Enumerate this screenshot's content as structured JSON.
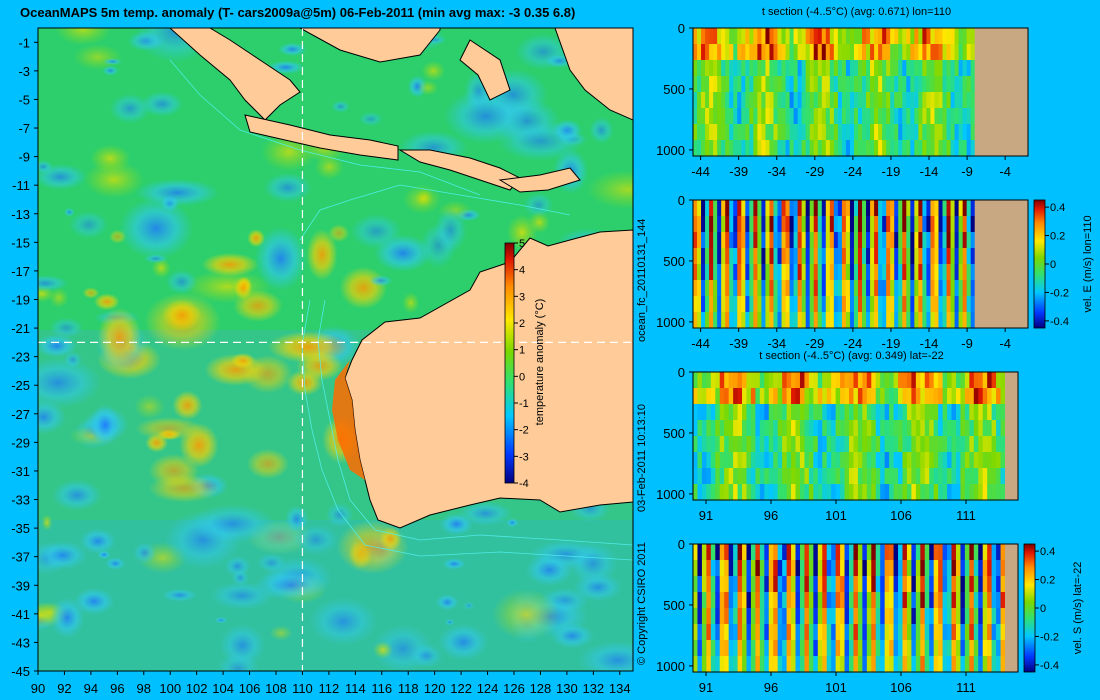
{
  "colors": {
    "background": "#00c0ff",
    "land": "#ffcc99",
    "section_land": "#c8a882"
  },
  "chart_data": [
    {
      "type": "heatmap",
      "title": "OceanMAPS 5m temp. anomaly (T- cars2009a@5m) 06-Feb-2011 (min avg max: -3 0.35 6.8)",
      "stats": {
        "min": -3,
        "avg": 0.35,
        "max": 6.8
      },
      "x_ticks": [
        90,
        92,
        94,
        96,
        98,
        100,
        102,
        104,
        106,
        108,
        110,
        112,
        114,
        116,
        118,
        120,
        122,
        124,
        126,
        128,
        130,
        132,
        134
      ],
      "y_ticks": [
        -1,
        -3,
        -5,
        -7,
        -9,
        -11,
        -13,
        -15,
        -17,
        -19,
        -21,
        -23,
        -25,
        -27,
        -29,
        -31,
        -33,
        -35,
        -37,
        -39,
        -41,
        -43,
        -45
      ],
      "xlim": [
        90,
        135
      ],
      "ylim": [
        -45,
        0
      ],
      "section_lon": 110,
      "section_lat": -22,
      "colorbar": {
        "label": "temperature anomaly (°C)",
        "ticks": [
          5,
          4,
          3,
          2,
          1,
          0,
          -1,
          -2,
          -3,
          -4
        ],
        "range": [
          -4,
          5
        ]
      },
      "side_text": [
        "© Copyright CSIRO 2011",
        "03-Feb-2011 10:13:10",
        "ocean_fc_20110131_144"
      ]
    },
    {
      "type": "heatmap",
      "title": "t section (-4..5°C) (avg: 0.671) lon=110",
      "avg": 0.671,
      "x_ticks": [
        -44,
        -39,
        -34,
        -29,
        -24,
        -19,
        -14,
        -9,
        -4
      ],
      "xlim": [
        -45,
        -1
      ],
      "y_ticks": [
        0,
        500,
        1000
      ],
      "ylim": [
        0,
        1050
      ],
      "land_from": -8
    },
    {
      "type": "heatmap",
      "title": "",
      "x_ticks": [
        -44,
        -39,
        -34,
        -29,
        -24,
        -19,
        -14,
        -9,
        -4
      ],
      "xlim": [
        -45,
        -1
      ],
      "y_ticks": [
        0,
        500,
        1000
      ],
      "ylim": [
        0,
        1050
      ],
      "land_from": -8,
      "colorbar": {
        "label": "vel. E (m/s) lon=110",
        "ticks": [
          0.4,
          0.2,
          0,
          -0.2,
          -0.4
        ],
        "range": [
          -0.45,
          0.45
        ]
      }
    },
    {
      "type": "heatmap",
      "title": "t section (-4..5°C) (avg: 0.349) lat=-22",
      "avg": 0.349,
      "x_ticks": [
        91,
        96,
        101,
        106,
        111
      ],
      "xlim": [
        90,
        115
      ],
      "y_ticks": [
        0,
        500,
        1000
      ],
      "ylim": [
        0,
        1050
      ],
      "land_from": 114
    },
    {
      "type": "heatmap",
      "title": "",
      "x_ticks": [
        91,
        96,
        101,
        106,
        111
      ],
      "xlim": [
        90,
        115
      ],
      "y_ticks": [
        0,
        500,
        1000
      ],
      "ylim": [
        0,
        1050
      ],
      "land_from": 114,
      "colorbar": {
        "label": "vel. S (m/s) lat=-22",
        "ticks": [
          0.4,
          0.2,
          0,
          -0.2,
          -0.4
        ],
        "range": [
          -0.45,
          0.45
        ]
      }
    }
  ]
}
